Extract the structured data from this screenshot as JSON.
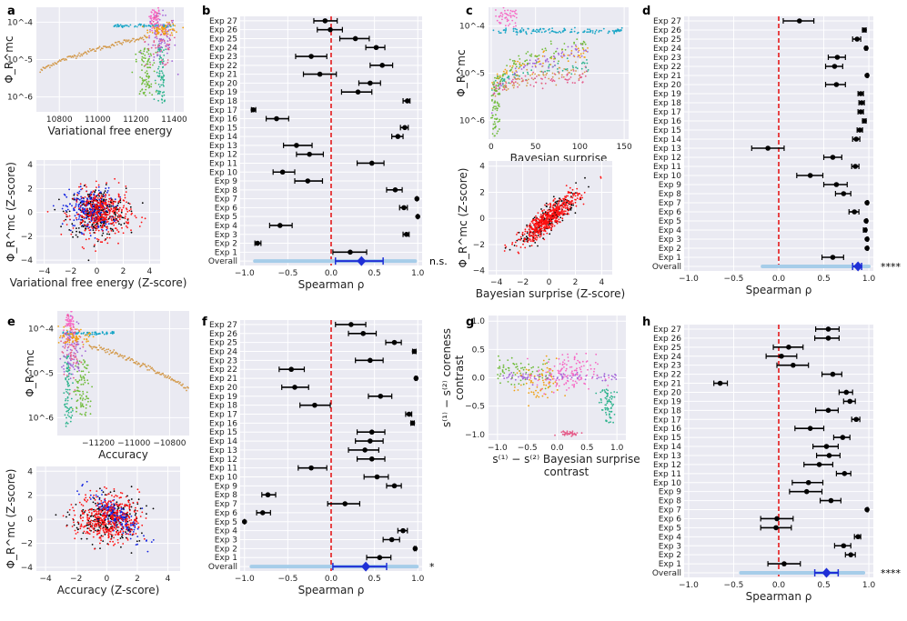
{
  "figure": {
    "panels": [
      "a",
      "b",
      "c",
      "d",
      "e",
      "f",
      "g",
      "h"
    ]
  },
  "colors": {
    "background": "#eaeaf2",
    "grid": "#ffffff",
    "point": "#000000",
    "overall": "#1f2fd6",
    "overall_ci": "#a6cde9",
    "zero_line": "#e41a1c",
    "z_black": "#000000",
    "z_blue": "#1020e0",
    "z_red": "#ff1010",
    "clusters": [
      "#f768c4",
      "#17a5c6",
      "#f0a011",
      "#2bb38c",
      "#a264d8",
      "#6dbb36",
      "#d39a4c",
      "#e55c8a"
    ]
  },
  "chart_data": [
    {
      "panel": "a",
      "type": "scatter",
      "xlabel": "Variational free energy",
      "ylabel": "Φ_R^mc",
      "x_ticks": [
        "10800",
        "11000",
        "11200",
        "11400"
      ],
      "x_tick_values": [
        10800,
        11000,
        11200,
        11400
      ],
      "xlim": [
        10680,
        11450
      ],
      "y_ticks": [
        "10^-4",
        "10^-5",
        "10^-6"
      ],
      "y_tick_values": [
        -4,
        -5,
        -6
      ],
      "ylim_log10": [
        -6.4,
        -3.6
      ]
    },
    {
      "panel": "a2",
      "type": "scatter",
      "xlabel": "Variational free energy (Z-score)",
      "ylabel": "Φ_R^mc (Z-score)",
      "x_ticks": [
        "−4",
        "−2",
        "0",
        "2",
        "4"
      ],
      "x_tick_values": [
        -4,
        -2,
        0,
        2,
        4
      ],
      "xlim": [
        -4.6,
        4.8
      ],
      "y_ticks": [
        "4",
        "2",
        "0",
        "−2",
        "−4"
      ],
      "y_tick_values": [
        4,
        2,
        0,
        -2,
        -4
      ],
      "ylim": [
        -4.3,
        4.4
      ]
    },
    {
      "panel": "b",
      "type": "forest",
      "xlabel": "Spearman ρ",
      "x_ticks": [
        "−1.0",
        "−0.5",
        "0.0",
        "0.5",
        "1.0"
      ],
      "x_tick_values": [
        -1.0,
        -0.5,
        0.0,
        0.5,
        1.0
      ],
      "xlim": [
        -1.05,
        1.05
      ],
      "significance": "n.s.",
      "overall_label": "Overall",
      "overall": {
        "value": 0.35,
        "ci": [
          0.05,
          0.6
        ],
        "range": [
          -0.88,
          0.97
        ]
      },
      "labels": [
        "Exp 27",
        "Exp 26",
        "Exp 25",
        "Exp 24",
        "Exp 23",
        "Exp 22",
        "Exp 21",
        "Exp 20",
        "Exp 19",
        "Exp 18",
        "Exp 17",
        "Exp 16",
        "Exp 15",
        "Exp 14",
        "Exp 13",
        "Exp 12",
        "Exp 11",
        "Exp 10",
        "Exp 9",
        "Exp 8",
        "Exp 7",
        "Exp 6",
        "Exp 5",
        "Exp 4",
        "Exp 3",
        "Exp 2",
        "Exp 1"
      ],
      "values": [
        -0.07,
        -0.01,
        0.28,
        0.52,
        -0.23,
        0.59,
        -0.13,
        0.45,
        0.31,
        0.88,
        -0.9,
        -0.63,
        0.85,
        0.77,
        -0.4,
        -0.25,
        0.47,
        -0.56,
        -0.27,
        0.74,
        0.99,
        0.84,
        1.0,
        -0.59,
        0.87,
        -0.85,
        0.22
      ],
      "ci_low": [
        -0.2,
        -0.16,
        0.1,
        0.4,
        -0.41,
        0.45,
        -0.32,
        0.32,
        0.12,
        0.83,
        -0.92,
        -0.75,
        0.8,
        0.7,
        -0.55,
        -0.4,
        0.3,
        -0.67,
        -0.42,
        0.64,
        0.99,
        0.79,
        1.0,
        -0.71,
        0.83,
        -0.88,
        0.02
      ],
      "ci_high": [
        0.07,
        0.13,
        0.44,
        0.62,
        -0.05,
        0.71,
        0.06,
        0.57,
        0.47,
        0.91,
        -0.87,
        -0.49,
        0.89,
        0.83,
        -0.22,
        -0.09,
        0.61,
        -0.42,
        -0.1,
        0.82,
        0.99,
        0.88,
        1.0,
        -0.45,
        0.9,
        -0.81,
        0.41
      ]
    },
    {
      "panel": "c",
      "type": "scatter",
      "xlabel": "Bayesian surprise",
      "ylabel": "Φ_R^mc",
      "x_ticks": [
        "0",
        "50",
        "100",
        "150"
      ],
      "x_tick_values": [
        0,
        50,
        100,
        150
      ],
      "xlim": [
        -3,
        155
      ],
      "y_ticks": [
        "10^-4",
        "10^-5",
        "10^-6"
      ],
      "y_tick_values": [
        -4,
        -5,
        -6
      ],
      "ylim_log10": [
        -6.4,
        -3.6
      ]
    },
    {
      "panel": "c2",
      "type": "scatter",
      "xlabel": "Bayesian surprise (Z-score)",
      "ylabel": "Φ_R^mc (Z-score)",
      "x_ticks": [
        "−4",
        "−2",
        "0",
        "2",
        "4"
      ],
      "x_tick_values": [
        -4,
        -2,
        0,
        2,
        4
      ],
      "xlim": [
        -4.6,
        4.8
      ],
      "y_ticks": [
        "4",
        "2",
        "0",
        "−2",
        "−4"
      ],
      "y_tick_values": [
        4,
        2,
        0,
        -2,
        -4
      ],
      "ylim": [
        -4.3,
        4.4
      ]
    },
    {
      "panel": "d",
      "type": "forest",
      "xlabel": "Spearman ρ",
      "x_ticks": [
        "−1.0",
        "−0.5",
        "0.0",
        "0.5",
        "1.0"
      ],
      "x_tick_values": [
        -1.0,
        -0.5,
        0.0,
        0.5,
        1.0
      ],
      "xlim": [
        -1.05,
        1.05
      ],
      "significance": "****",
      "overall_label": "Overall",
      "overall": {
        "value": 0.88,
        "ci": [
          0.82,
          0.92
        ],
        "range": [
          -0.18,
          1.0
        ]
      },
      "labels": [
        "Exp 27",
        "Exp 26",
        "Exp 25",
        "Exp 24",
        "Exp 23",
        "Exp 22",
        "Exp 21",
        "Exp 20",
        "Exp 19",
        "Exp 18",
        "Exp 17",
        "Exp 16",
        "Exp 15",
        "Exp 14",
        "Exp 13",
        "Exp 12",
        "Exp 11",
        "Exp 10",
        "Exp 9",
        "Exp 8",
        "Exp 7",
        "Exp 6",
        "Exp 5",
        "Exp 4",
        "Exp 3",
        "Exp 2",
        "Exp 1"
      ],
      "values": [
        0.23,
        0.95,
        0.87,
        0.97,
        0.65,
        0.62,
        0.98,
        0.64,
        0.91,
        0.92,
        0.91,
        0.95,
        0.9,
        0.86,
        -0.12,
        0.6,
        0.85,
        0.35,
        0.64,
        0.72,
        0.98,
        0.84,
        0.97,
        0.96,
        0.98,
        0.98,
        0.6
      ],
      "ci_low": [
        0.05,
        0.93,
        0.82,
        0.96,
        0.55,
        0.52,
        0.98,
        0.52,
        0.88,
        0.89,
        0.88,
        0.93,
        0.87,
        0.82,
        -0.3,
        0.5,
        0.81,
        0.2,
        0.5,
        0.63,
        0.98,
        0.78,
        0.97,
        0.94,
        0.98,
        0.98,
        0.48
      ],
      "ci_high": [
        0.39,
        0.97,
        0.91,
        0.98,
        0.74,
        0.71,
        0.99,
        0.74,
        0.94,
        0.95,
        0.94,
        0.97,
        0.93,
        0.9,
        0.06,
        0.7,
        0.89,
        0.49,
        0.76,
        0.8,
        0.99,
        0.89,
        0.98,
        0.97,
        0.99,
        0.99,
        0.72
      ]
    },
    {
      "panel": "e",
      "type": "scatter",
      "xlabel": "Accuracy",
      "ylabel": "Φ_R^mc",
      "x_ticks": [
        "−11200",
        "−11000",
        "−10800"
      ],
      "x_tick_values": [
        -11200,
        -11000,
        -10800
      ],
      "xlim": [
        -11430,
        -10690
      ],
      "y_ticks": [
        "10^-4",
        "10^-5",
        "10^-6"
      ],
      "y_tick_values": [
        -4,
        -5,
        -6
      ],
      "ylim_log10": [
        -6.4,
        -3.6
      ]
    },
    {
      "panel": "e2",
      "type": "scatter",
      "xlabel": "Accuracy (Z-score)",
      "ylabel": "Φ_R^mc (Z-score)",
      "x_ticks": [
        "−4",
        "−2",
        "0",
        "2",
        "4"
      ],
      "x_tick_values": [
        -4,
        -2,
        0,
        2,
        4
      ],
      "xlim": [
        -4.6,
        4.8
      ],
      "y_ticks": [
        "4",
        "2",
        "0",
        "−2",
        "−4"
      ],
      "y_tick_values": [
        4,
        2,
        0,
        -2,
        -4
      ],
      "ylim": [
        -4.3,
        4.4
      ]
    },
    {
      "panel": "f",
      "type": "forest",
      "xlabel": "Spearman ρ",
      "x_ticks": [
        "−1.0",
        "−0.5",
        "0.0",
        "0.5",
        "1.0"
      ],
      "x_tick_values": [
        -1.0,
        -0.5,
        0.0,
        0.5,
        1.0
      ],
      "xlim": [
        -1.05,
        1.05
      ],
      "significance": "*",
      "overall_label": "Overall",
      "overall": {
        "value": 0.4,
        "ci": [
          0.02,
          0.64
        ],
        "range": [
          -0.92,
          0.99
        ]
      },
      "labels": [
        "Exp 27",
        "Exp 26",
        "Exp 25",
        "Exp 24",
        "Exp 23",
        "Exp 22",
        "Exp 21",
        "Exp 20",
        "Exp 19",
        "Exp 18",
        "Exp 17",
        "Exp 16",
        "Exp 15",
        "Exp 14",
        "Exp 13",
        "Exp 12",
        "Exp 11",
        "Exp 10",
        "Exp 9",
        "Exp 8",
        "Exp 7",
        "Exp 6",
        "Exp 5",
        "Exp 4",
        "Exp 3",
        "Exp 2",
        "Exp 1"
      ],
      "values": [
        0.23,
        0.37,
        0.73,
        0.96,
        0.45,
        -0.46,
        0.98,
        -0.42,
        0.57,
        -0.19,
        0.9,
        0.94,
        0.47,
        0.45,
        0.39,
        0.47,
        -0.23,
        0.53,
        0.73,
        -0.73,
        0.16,
        -0.79,
        -1.0,
        0.83,
        0.7,
        0.97,
        0.56
      ],
      "ci_low": [
        0.05,
        0.2,
        0.63,
        0.94,
        0.28,
        -0.6,
        0.97,
        -0.57,
        0.43,
        -0.36,
        0.86,
        0.92,
        0.3,
        0.28,
        0.2,
        0.3,
        -0.38,
        0.38,
        0.64,
        -0.8,
        -0.04,
        -0.86,
        -1.0,
        0.77,
        0.6,
        0.96,
        0.41
      ],
      "ci_high": [
        0.4,
        0.52,
        0.81,
        0.98,
        0.6,
        -0.31,
        0.99,
        -0.26,
        0.7,
        -0.01,
        0.93,
        0.96,
        0.62,
        0.6,
        0.55,
        0.62,
        -0.05,
        0.66,
        0.81,
        -0.64,
        0.33,
        -0.7,
        -1.0,
        0.88,
        0.79,
        0.98,
        0.69
      ]
    },
    {
      "panel": "g",
      "type": "scatter",
      "xlabel_line1": "s⁽¹⁾ − s⁽²⁾ Bayesian surprise",
      "xlabel_line2": "contrast",
      "ylabel_line1": "s⁽¹⁾ − s⁽²⁾ coreness",
      "ylabel_line2": "contrast",
      "x_ticks": [
        "−1.0",
        "−0.5",
        "0.0",
        "0.5",
        "1.0"
      ],
      "x_tick_values": [
        -1.0,
        -0.5,
        0.0,
        0.5,
        1.0
      ],
      "xlim": [
        -1.15,
        1.15
      ],
      "y_ticks": [
        "1.0",
        "0.5",
        "0.0",
        "−0.5",
        "−1.0"
      ],
      "y_tick_values": [
        1.0,
        0.5,
        0.0,
        -0.5,
        -1.0
      ],
      "ylim": [
        -1.1,
        1.1
      ]
    },
    {
      "panel": "h",
      "type": "forest",
      "xlabel": "Spearman ρ",
      "x_ticks": [
        "−1.0",
        "−0.5",
        "0.0",
        "0.5",
        "1.0"
      ],
      "x_tick_values": [
        -1.0,
        -0.5,
        0.0,
        0.5,
        1.0
      ],
      "xlim": [
        -1.05,
        1.05
      ],
      "significance": "****",
      "overall_label": "Overall",
      "overall": {
        "value": 0.53,
        "ci": [
          0.4,
          0.66
        ],
        "range": [
          -0.42,
          0.94
        ]
      },
      "labels": [
        "Exp 27",
        "Exp 26",
        "Exp 25",
        "Exp 24",
        "Exp 23",
        "Exp 22",
        "Exp 21",
        "Exp 20",
        "Exp 19",
        "Exp 18",
        "Exp 17",
        "Exp 16",
        "Exp 15",
        "Exp 14",
        "Exp 13",
        "Exp 12",
        "Exp 11",
        "Exp 10",
        "Exp 9",
        "Exp 8",
        "Exp 7",
        "Exp 6",
        "Exp 5",
        "Exp 4",
        "Exp 3",
        "Exp 2",
        "Exp 1"
      ],
      "values": [
        0.55,
        0.55,
        0.11,
        0.03,
        0.16,
        0.6,
        -0.65,
        0.75,
        0.79,
        0.55,
        0.86,
        0.35,
        0.71,
        0.53,
        0.56,
        0.45,
        0.73,
        0.33,
        0.31,
        0.58,
        0.98,
        -0.02,
        -0.03,
        0.88,
        0.72,
        0.8,
        0.06
      ],
      "ci_low": [
        0.41,
        0.4,
        -0.06,
        -0.14,
        -0.02,
        0.48,
        -0.72,
        0.67,
        0.72,
        0.41,
        0.81,
        0.18,
        0.61,
        0.38,
        0.42,
        0.28,
        0.64,
        0.15,
        0.12,
        0.46,
        0.98,
        -0.2,
        -0.2,
        0.84,
        0.62,
        0.74,
        -0.12
      ],
      "ci_high": [
        0.67,
        0.67,
        0.27,
        0.2,
        0.33,
        0.7,
        -0.57,
        0.82,
        0.85,
        0.66,
        0.9,
        0.5,
        0.79,
        0.66,
        0.68,
        0.6,
        0.8,
        0.49,
        0.48,
        0.69,
        0.99,
        0.16,
        0.14,
        0.91,
        0.8,
        0.85,
        0.24
      ]
    }
  ]
}
